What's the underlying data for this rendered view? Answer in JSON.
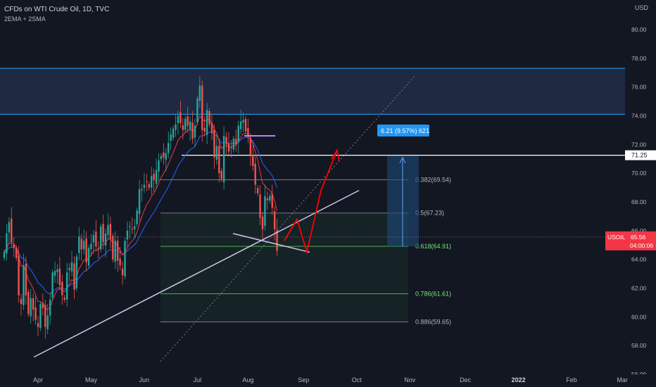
{
  "header": {
    "title": "CFDs on WTI Crude Oil, 1D, TVC",
    "indicators": "2EMA + 2SMA",
    "currency": "USD"
  },
  "colors": {
    "background": "#131722",
    "up": "#26a69a",
    "down": "#ef5350",
    "ema": "#f23645",
    "sma": "#2962ff",
    "zone_line": "#2196f3",
    "trendline": "#d1c4e9",
    "fib_green": "#4caf50",
    "fib_gray": "#787b86",
    "projection": "#ff0000",
    "price_tag": "#f23645"
  },
  "chart_data": {
    "type": "candlestick",
    "symbol": "USOIL",
    "ylim": [
      55.5,
      81
    ],
    "y_ticks": [
      "56.00",
      "58.00",
      "60.00",
      "62.00",
      "64.00",
      "66.00",
      "68.00",
      "70.00",
      "72.00",
      "74.00",
      "76.00",
      "78.00",
      "80.00"
    ],
    "x_ticks": [
      "Apr",
      "May",
      "Jun",
      "Jul",
      "Aug",
      "Sep",
      "Oct",
      "Nov",
      "Dec",
      "2022",
      "Feb",
      "Mar"
    ],
    "x_tick_indexes": [
      14,
      36,
      58,
      80,
      101,
      124,
      146,
      168,
      191,
      213,
      235,
      256
    ],
    "current_price": "65.56",
    "countdown": "04:00:06",
    "resistance_zone": [
      74.1,
      77.3
    ],
    "horizontal_line": {
      "price": 71.25,
      "label": "71.25"
    },
    "fib_levels": [
      {
        "ratio": "0.382",
        "price": 69.54,
        "label": "0.382(69.54)",
        "style": "gray"
      },
      {
        "ratio": "0.5",
        "price": 67.23,
        "label": "0.5(67.23)",
        "style": "gray"
      },
      {
        "ratio": "0.618",
        "price": 64.91,
        "label": "0.618(64.91)",
        "style": "green"
      },
      {
        "ratio": "0.786",
        "price": 61.61,
        "label": "0.786(61.61)",
        "style": "green"
      },
      {
        "ratio": "0.886",
        "price": 59.65,
        "label": "0.886(59.65)",
        "style": "gray"
      }
    ],
    "measure_label": "6.21 (9.57%) 621",
    "candles_closes": [
      64.5,
      65.8,
      66.6,
      65.2,
      64.8,
      64.1,
      61.5,
      60.9,
      63.6,
      61.5,
      60.2,
      61.3,
      60.5,
      59.8,
      59.3,
      60.9,
      60.6,
      59.3,
      60.1,
      61.2,
      63.1,
      63.2,
      63.3,
      62.2,
      61.5,
      61.2,
      63.1,
      63.4,
      63.8,
      61.9,
      64.2,
      65.6,
      64.7,
      65.3,
      63.8,
      64.8,
      65.1,
      65.7,
      64.9,
      64.7,
      66.3,
      65.2,
      65.8,
      66.4,
      65.4,
      64.0,
      65.3,
      63.9,
      63.6,
      62.9,
      65.3,
      66.0,
      66.3,
      66.1,
      66.3,
      67.4,
      68.9,
      68.9,
      69.2,
      69.4,
      69.0,
      69.8,
      69.5,
      70.2,
      70.9,
      71.2,
      71.1,
      71.4,
      72.1,
      72.7,
      73.1,
      73.4,
      74.0,
      73.5,
      73.0,
      73.8,
      73.3,
      73.6,
      72.4,
      73.3,
      75.2,
      76.1,
      73.0,
      72.9,
      74.4,
      73.4,
      72.8,
      71.1,
      71.9,
      70.0,
      69.6,
      72.6,
      72.0,
      71.5,
      71.8,
      72.4,
      72.0,
      73.3,
      73.6,
      73.7,
      72.9,
      72.6,
      71.3,
      70.5,
      69.2,
      68.6,
      66.9,
      66.1,
      68.4,
      68.1,
      68.4,
      67.6,
      66.1,
      64.6
    ],
    "ema_label": "2EMA",
    "sma_label": "2SMA"
  }
}
